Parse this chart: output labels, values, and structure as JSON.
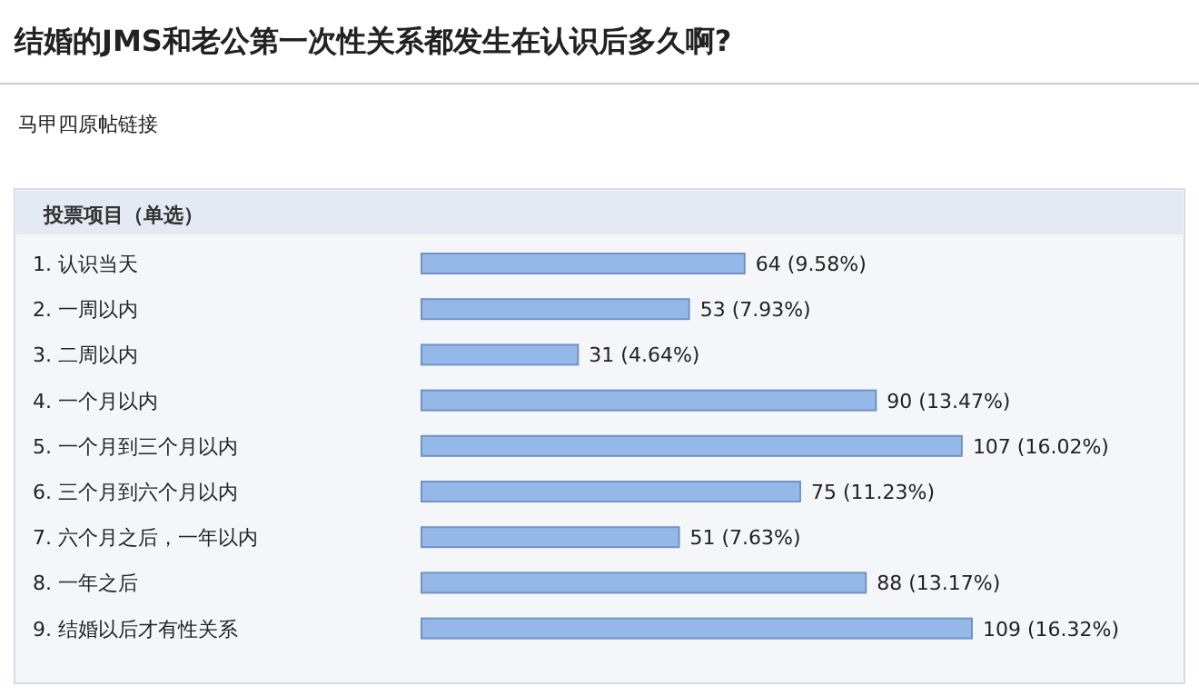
{
  "chart_data": {
    "type": "bar",
    "orientation": "horizontal",
    "title": "结婚的JMS和老公第一次性关系都发生在认识后多久啊?",
    "subtitle": "投票项目（单选）",
    "annotations": [
      "马甲四原帖链接"
    ],
    "categories": [
      "1.  认识当天",
      "2.  一周以内",
      "3.  二周以内",
      "4.  一个月以内",
      "5.  一个月到三个月以内",
      "6.  三个月到六个月以内",
      "7.  六个月之后，一年以内",
      "8.  一年之后",
      "9.  结婚以后才有性关系"
    ],
    "values": [
      64,
      53,
      31,
      90,
      107,
      75,
      51,
      88,
      109
    ],
    "value_labels": [
      "64 (9.58%)",
      "53 (7.93%)",
      "31 (4.64%)",
      "90 (13.47%)",
      "107 (16.02%)",
      "75 (11.23%)",
      "51 (7.63%)",
      "88 (13.17%)",
      "109 (16.32%)"
    ],
    "color": "#94b9e8"
  }
}
